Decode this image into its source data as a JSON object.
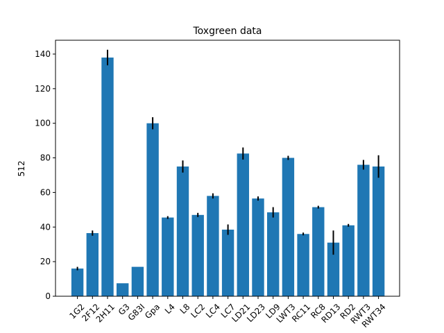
{
  "chart_data": {
    "type": "bar",
    "title": "Toxgreen data",
    "xlabel": "",
    "ylabel": "512",
    "ylim": [
      0,
      148
    ],
    "yticks": [
      0,
      20,
      40,
      60,
      80,
      100,
      120,
      140
    ],
    "grid": false,
    "bar_color": "#1f77b4",
    "error_color": "#000000",
    "categories": [
      "1G2",
      "2F12",
      "2H11",
      "G3",
      "G83I",
      "Gpa",
      "L4",
      "L8",
      "LC2",
      "LC4",
      "LC7",
      "LD21",
      "LD23",
      "LD9",
      "LWT3",
      "RC11",
      "RC8",
      "RD13",
      "RD2",
      "RWT3",
      "RWT34"
    ],
    "values": [
      16,
      36.5,
      138,
      7.5,
      17,
      100,
      45.5,
      75,
      47,
      58,
      38.5,
      82.5,
      56.5,
      48.5,
      80,
      36,
      51.5,
      31,
      41,
      76,
      75
    ],
    "errors": [
      1,
      1.5,
      4.5,
      0,
      0,
      3.5,
      0.8,
      3.5,
      1.2,
      1.5,
      3,
      3.5,
      1.2,
      3,
      1.2,
      0.8,
      0.8,
      7,
      0.8,
      2.8,
      6.5
    ]
  }
}
